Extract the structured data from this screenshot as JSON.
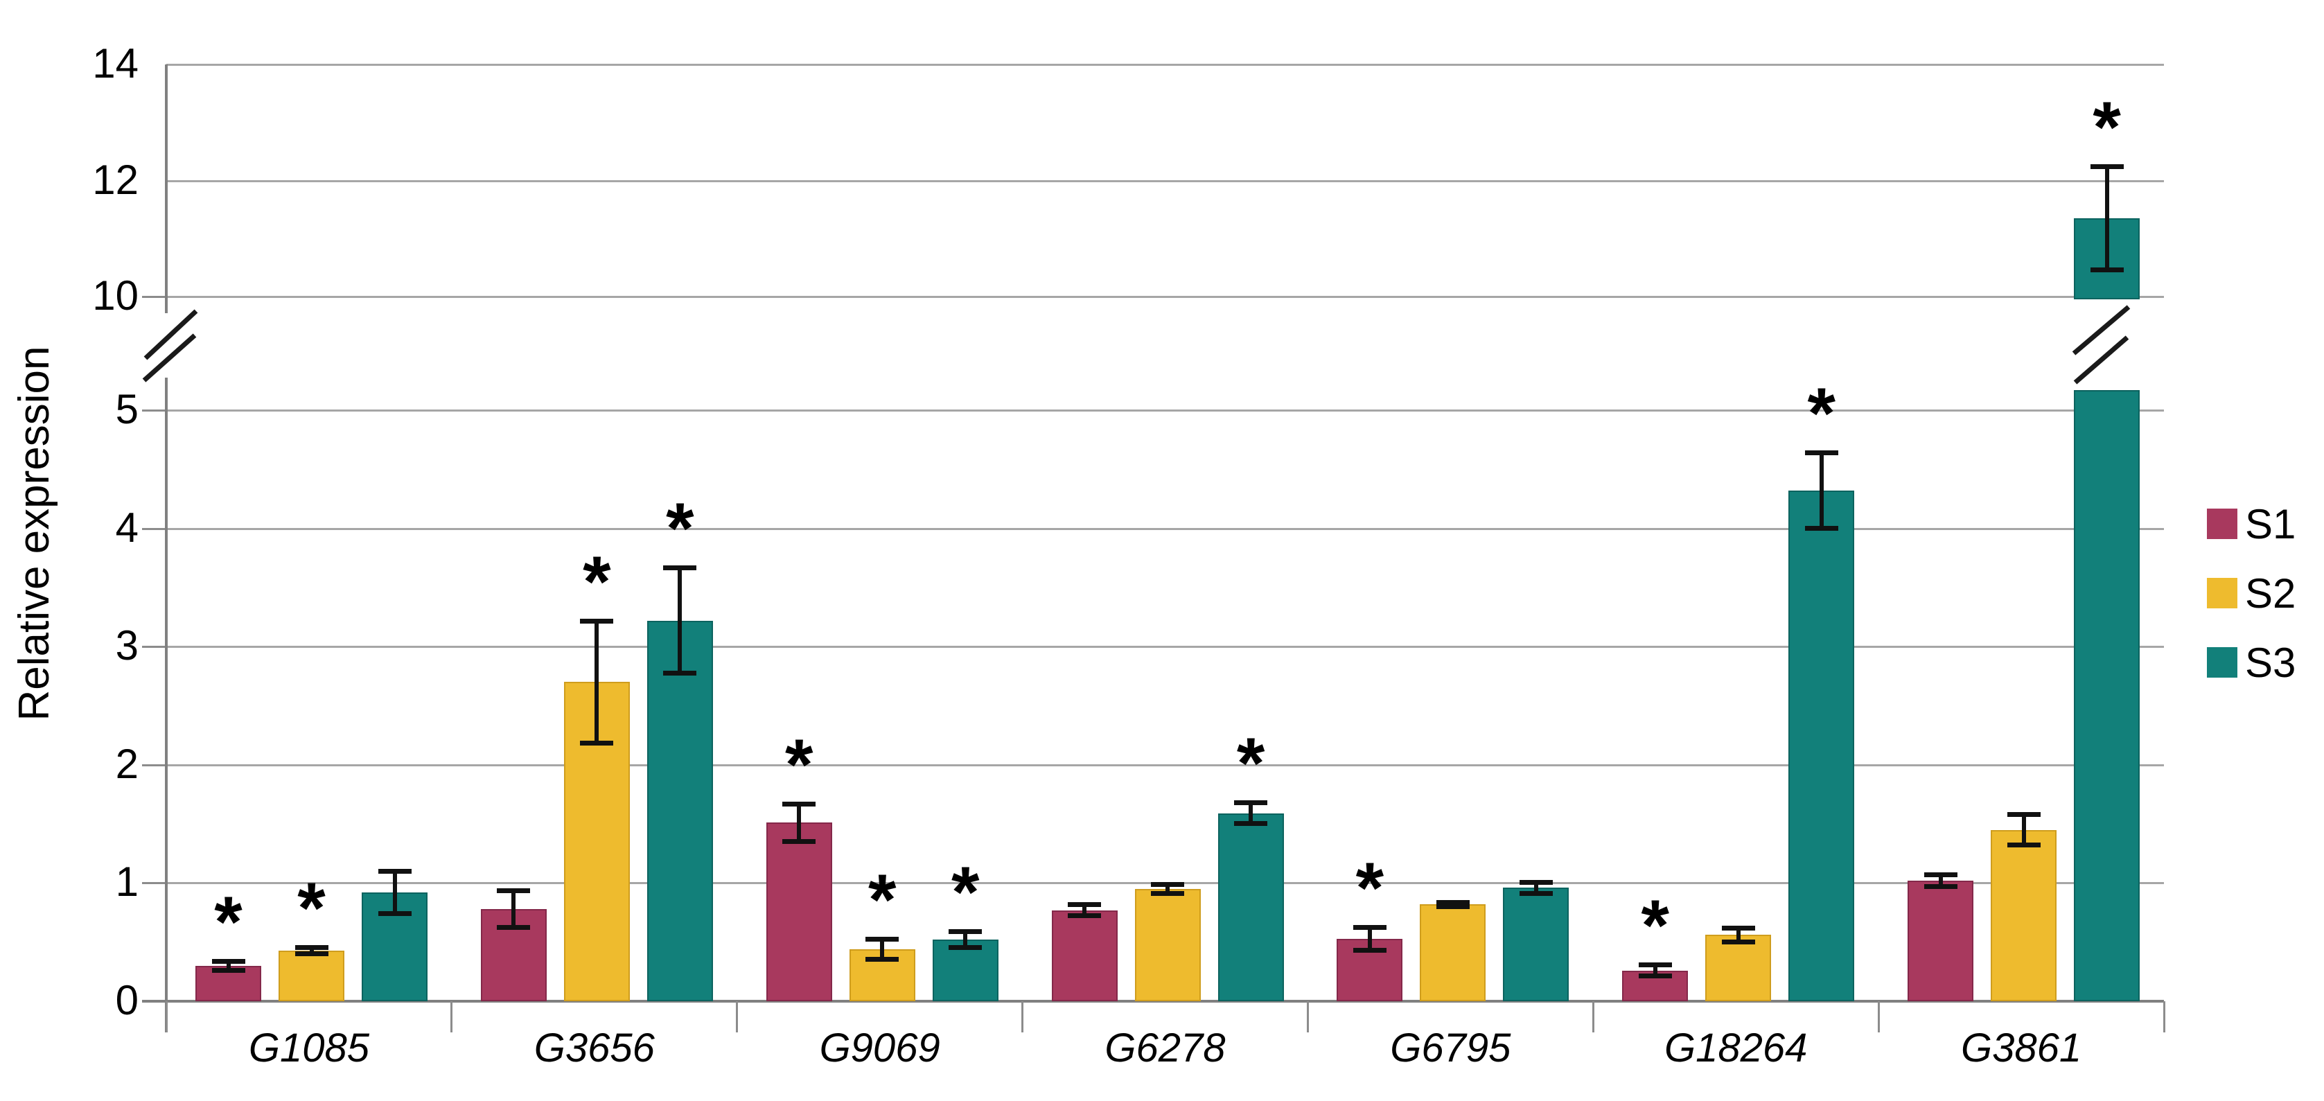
{
  "chart_data": {
    "type": "bar",
    "title": "",
    "ylabel": "Relative expression",
    "xlabel": "",
    "categories": [
      "G1085",
      "G3656",
      "G9069",
      "G6278",
      "G6795",
      "G18264",
      "G3861"
    ],
    "series": [
      {
        "name": "S1",
        "color": "#a8395e",
        "border_color": "#84284a",
        "values": [
          0.3,
          0.78,
          1.51,
          0.77,
          0.53,
          0.26,
          1.02
        ],
        "errors": [
          0.04,
          0.16,
          0.16,
          0.05,
          0.1,
          0.05,
          0.05
        ],
        "significant": [
          true,
          false,
          true,
          false,
          true,
          true,
          false
        ]
      },
      {
        "name": "S2",
        "color": "#eebb2e",
        "border_color": "#cf9d1d",
        "values": [
          0.43,
          2.7,
          0.44,
          0.95,
          0.82,
          0.56,
          1.45
        ],
        "errors": [
          0.03,
          0.52,
          0.09,
          0.04,
          0.02,
          0.06,
          0.13
        ],
        "significant": [
          true,
          true,
          true,
          false,
          false,
          false,
          false
        ]
      },
      {
        "name": "S3",
        "color": "#12807a",
        "border_color": "#0c635f",
        "values": [
          0.92,
          3.22,
          0.52,
          1.59,
          0.96,
          4.32,
          11.35
        ],
        "errors": [
          0.18,
          0.45,
          0.07,
          0.09,
          0.05,
          0.32,
          0.9
        ],
        "significant": [
          false,
          true,
          true,
          true,
          false,
          true,
          true
        ]
      }
    ],
    "y_axis": {
      "lower_ticks": [
        0,
        1,
        2,
        3,
        4,
        5
      ],
      "upper_ticks": [
        10,
        12,
        14
      ],
      "break_between": [
        5,
        10
      ],
      "lower_range": [
        0,
        5
      ],
      "upper_range": [
        10,
        14
      ]
    },
    "legend": [
      {
        "label": "S1",
        "color": "#a8395e"
      },
      {
        "label": "S2",
        "color": "#eebb2e"
      },
      {
        "label": "S3",
        "color": "#12807a"
      }
    ],
    "grid": true,
    "legend_position": "right",
    "significance_marker": "*",
    "colors": {
      "gridline": "#a6a6a6",
      "axis": "#808080",
      "error_bar": "#111111",
      "background": "#ffffff",
      "text": "#000000"
    }
  }
}
